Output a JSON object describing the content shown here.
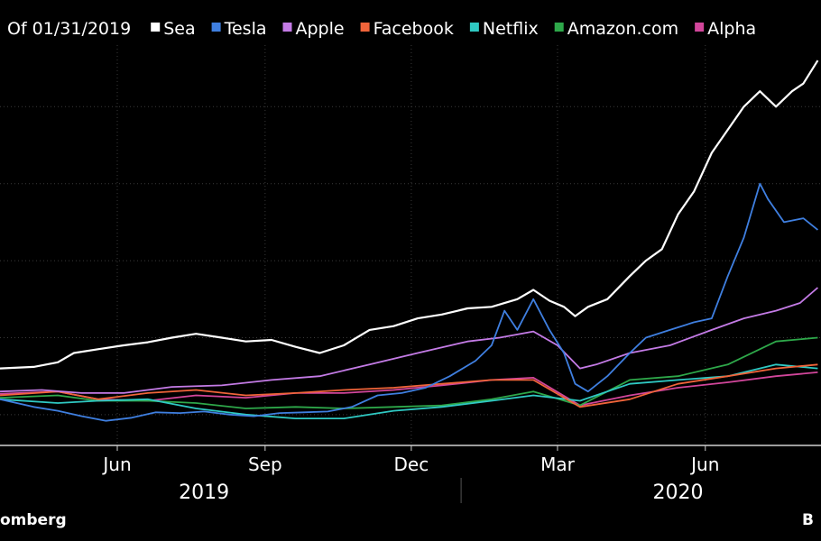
{
  "legend": {
    "prefix": "Of 01/31/2019"
  },
  "source": {
    "left_text": "omberg",
    "right_text": "B"
  },
  "chart_data": {
    "type": "line",
    "title": "",
    "xlabel": "",
    "ylabel": "",
    "x_range": [
      "2019-03-20",
      "2020-08-12"
    ],
    "ylim": [
      60,
      580
    ],
    "x_ticks": [
      {
        "date": "2019-06-01",
        "label": "Jun"
      },
      {
        "date": "2019-09-01",
        "label": "Sep"
      },
      {
        "date": "2019-12-01",
        "label": "Dec"
      },
      {
        "date": "2020-03-01",
        "label": "Mar"
      },
      {
        "date": "2020-06-01",
        "label": "Jun"
      }
    ],
    "year_labels": [
      {
        "date": "2019-07-25",
        "label": "2019"
      },
      {
        "date": "2020-05-15",
        "label": "2020"
      }
    ],
    "year_divider_date": "2020-01-01",
    "gridlines_y": [
      100,
      200,
      300,
      400,
      500
    ],
    "grid": true,
    "legend_position": "top",
    "series": [
      {
        "name": "Sea",
        "color": "#ffffff",
        "points": [
          [
            "2019-03-20",
            160
          ],
          [
            "2019-04-10",
            162
          ],
          [
            "2019-04-25",
            168
          ],
          [
            "2019-05-05",
            180
          ],
          [
            "2019-05-20",
            185
          ],
          [
            "2019-06-05",
            190
          ],
          [
            "2019-06-20",
            194
          ],
          [
            "2019-07-05",
            200
          ],
          [
            "2019-07-20",
            205
          ],
          [
            "2019-08-05",
            200
          ],
          [
            "2019-08-20",
            195
          ],
          [
            "2019-09-05",
            197
          ],
          [
            "2019-09-20",
            188
          ],
          [
            "2019-10-05",
            180
          ],
          [
            "2019-10-20",
            190
          ],
          [
            "2019-11-05",
            210
          ],
          [
            "2019-11-20",
            215
          ],
          [
            "2019-12-05",
            225
          ],
          [
            "2019-12-20",
            230
          ],
          [
            "2020-01-05",
            238
          ],
          [
            "2020-01-20",
            240
          ],
          [
            "2020-02-05",
            250
          ],
          [
            "2020-02-15",
            262
          ],
          [
            "2020-02-25",
            248
          ],
          [
            "2020-03-05",
            240
          ],
          [
            "2020-03-12",
            228
          ],
          [
            "2020-03-20",
            240
          ],
          [
            "2020-04-01",
            250
          ],
          [
            "2020-04-15",
            280
          ],
          [
            "2020-04-25",
            300
          ],
          [
            "2020-05-05",
            315
          ],
          [
            "2020-05-15",
            360
          ],
          [
            "2020-05-25",
            390
          ],
          [
            "2020-06-05",
            440
          ],
          [
            "2020-06-15",
            470
          ],
          [
            "2020-06-25",
            500
          ],
          [
            "2020-07-05",
            520
          ],
          [
            "2020-07-15",
            500
          ],
          [
            "2020-07-25",
            520
          ],
          [
            "2020-08-01",
            530
          ],
          [
            "2020-08-10",
            560
          ]
        ]
      },
      {
        "name": "Tesla",
        "color": "#3f7fe0",
        "points": [
          [
            "2019-03-20",
            120
          ],
          [
            "2019-04-10",
            110
          ],
          [
            "2019-04-25",
            105
          ],
          [
            "2019-05-10",
            98
          ],
          [
            "2019-05-25",
            92
          ],
          [
            "2019-06-10",
            96
          ],
          [
            "2019-06-25",
            103
          ],
          [
            "2019-07-10",
            102
          ],
          [
            "2019-07-25",
            104
          ],
          [
            "2019-08-10",
            100
          ],
          [
            "2019-08-25",
            98
          ],
          [
            "2019-09-10",
            102
          ],
          [
            "2019-09-25",
            103
          ],
          [
            "2019-10-10",
            104
          ],
          [
            "2019-10-25",
            110
          ],
          [
            "2019-11-10",
            125
          ],
          [
            "2019-11-25",
            128
          ],
          [
            "2019-12-10",
            135
          ],
          [
            "2019-12-25",
            150
          ],
          [
            "2020-01-10",
            170
          ],
          [
            "2020-01-20",
            190
          ],
          [
            "2020-01-28",
            235
          ],
          [
            "2020-02-05",
            210
          ],
          [
            "2020-02-15",
            250
          ],
          [
            "2020-02-25",
            210
          ],
          [
            "2020-03-05",
            180
          ],
          [
            "2020-03-12",
            140
          ],
          [
            "2020-03-20",
            130
          ],
          [
            "2020-04-01",
            150
          ],
          [
            "2020-04-15",
            180
          ],
          [
            "2020-04-25",
            200
          ],
          [
            "2020-05-10",
            210
          ],
          [
            "2020-05-25",
            220
          ],
          [
            "2020-06-05",
            225
          ],
          [
            "2020-06-15",
            280
          ],
          [
            "2020-06-25",
            330
          ],
          [
            "2020-07-05",
            400
          ],
          [
            "2020-07-10",
            380
          ],
          [
            "2020-07-20",
            350
          ],
          [
            "2020-08-01",
            355
          ],
          [
            "2020-08-10",
            340
          ]
        ]
      },
      {
        "name": "Apple",
        "color": "#c47be6",
        "points": [
          [
            "2019-03-20",
            130
          ],
          [
            "2019-04-15",
            132
          ],
          [
            "2019-05-10",
            128
          ],
          [
            "2019-06-05",
            128
          ],
          [
            "2019-07-05",
            136
          ],
          [
            "2019-08-05",
            138
          ],
          [
            "2019-09-05",
            145
          ],
          [
            "2019-10-05",
            150
          ],
          [
            "2019-11-05",
            165
          ],
          [
            "2019-12-05",
            180
          ],
          [
            "2020-01-05",
            195
          ],
          [
            "2020-01-25",
            200
          ],
          [
            "2020-02-15",
            208
          ],
          [
            "2020-03-01",
            190
          ],
          [
            "2020-03-15",
            160
          ],
          [
            "2020-03-25",
            165
          ],
          [
            "2020-04-15",
            180
          ],
          [
            "2020-05-10",
            190
          ],
          [
            "2020-06-05",
            210
          ],
          [
            "2020-06-25",
            225
          ],
          [
            "2020-07-15",
            235
          ],
          [
            "2020-07-30",
            245
          ],
          [
            "2020-08-10",
            265
          ]
        ]
      },
      {
        "name": "Facebook",
        "color": "#f0643a",
        "points": [
          [
            "2019-03-20",
            125
          ],
          [
            "2019-04-25",
            130
          ],
          [
            "2019-05-20",
            120
          ],
          [
            "2019-06-20",
            128
          ],
          [
            "2019-07-20",
            132
          ],
          [
            "2019-08-20",
            125
          ],
          [
            "2019-09-20",
            128
          ],
          [
            "2019-10-20",
            132
          ],
          [
            "2019-11-20",
            135
          ],
          [
            "2019-12-20",
            140
          ],
          [
            "2020-01-20",
            145
          ],
          [
            "2020-02-15",
            145
          ],
          [
            "2020-03-15",
            110
          ],
          [
            "2020-04-15",
            120
          ],
          [
            "2020-05-15",
            140
          ],
          [
            "2020-06-15",
            150
          ],
          [
            "2020-07-15",
            160
          ],
          [
            "2020-08-10",
            165
          ]
        ]
      },
      {
        "name": "Netflix",
        "color": "#2fc9c3",
        "points": [
          [
            "2019-03-20",
            120
          ],
          [
            "2019-04-25",
            115
          ],
          [
            "2019-05-20",
            118
          ],
          [
            "2019-06-20",
            120
          ],
          [
            "2019-07-20",
            108
          ],
          [
            "2019-08-20",
            100
          ],
          [
            "2019-09-20",
            95
          ],
          [
            "2019-10-20",
            95
          ],
          [
            "2019-11-20",
            105
          ],
          [
            "2019-12-20",
            110
          ],
          [
            "2020-01-20",
            118
          ],
          [
            "2020-02-15",
            125
          ],
          [
            "2020-03-15",
            118
          ],
          [
            "2020-04-15",
            140
          ],
          [
            "2020-05-15",
            145
          ],
          [
            "2020-06-15",
            150
          ],
          [
            "2020-07-15",
            165
          ],
          [
            "2020-08-10",
            160
          ]
        ]
      },
      {
        "name": "Amazon.com",
        "color": "#2ea84a",
        "points": [
          [
            "2019-03-20",
            122
          ],
          [
            "2019-04-25",
            125
          ],
          [
            "2019-05-20",
            118
          ],
          [
            "2019-06-20",
            118
          ],
          [
            "2019-07-20",
            115
          ],
          [
            "2019-08-20",
            108
          ],
          [
            "2019-09-20",
            110
          ],
          [
            "2019-10-20",
            108
          ],
          [
            "2019-11-20",
            110
          ],
          [
            "2019-12-20",
            112
          ],
          [
            "2020-01-20",
            120
          ],
          [
            "2020-02-15",
            130
          ],
          [
            "2020-03-15",
            112
          ],
          [
            "2020-04-15",
            145
          ],
          [
            "2020-05-15",
            150
          ],
          [
            "2020-06-15",
            165
          ],
          [
            "2020-07-15",
            195
          ],
          [
            "2020-08-10",
            200
          ]
        ]
      },
      {
        "name": "Alpha",
        "color": "#d2469b",
        "points": [
          [
            "2019-03-20",
            127
          ],
          [
            "2019-04-25",
            130
          ],
          [
            "2019-05-20",
            120
          ],
          [
            "2019-06-20",
            118
          ],
          [
            "2019-07-20",
            125
          ],
          [
            "2019-08-20",
            122
          ],
          [
            "2019-09-20",
            128
          ],
          [
            "2019-10-20",
            128
          ],
          [
            "2019-11-20",
            132
          ],
          [
            "2019-12-20",
            138
          ],
          [
            "2020-01-20",
            145
          ],
          [
            "2020-02-15",
            148
          ],
          [
            "2020-03-15",
            112
          ],
          [
            "2020-04-15",
            125
          ],
          [
            "2020-05-15",
            135
          ],
          [
            "2020-06-15",
            142
          ],
          [
            "2020-07-15",
            150
          ],
          [
            "2020-08-10",
            155
          ]
        ]
      }
    ]
  }
}
